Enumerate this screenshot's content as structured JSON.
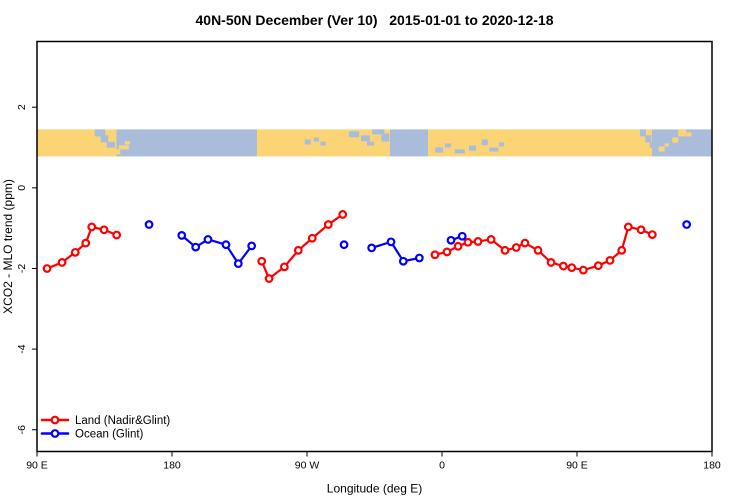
{
  "title": "40N-50N December (Ver 10)   2015-01-01 to 2020-12-18",
  "chart_data": {
    "type": "line",
    "title": "40N-50N December (Ver 10)   2015-01-01 to 2020-12-18",
    "xlabel": "Longitude (deg E)",
    "ylabel": "XCO2 - MLO trend (ppm)",
    "x_axis": {
      "min": 90,
      "max": 540,
      "ticks": [
        {
          "value": 90,
          "label": "90 E"
        },
        {
          "value": 180,
          "label": "180"
        },
        {
          "value": 270,
          "label": "90 W"
        },
        {
          "value": 360,
          "label": "0"
        },
        {
          "value": 450,
          "label": "90 E"
        },
        {
          "value": 540,
          "label": "180"
        }
      ]
    },
    "y_axis": {
      "min": -6.54,
      "max": 3.63,
      "ticks": [
        {
          "value": 2,
          "label": "2"
        },
        {
          "value": 0,
          "label": "0"
        },
        {
          "value": -2,
          "label": "-2"
        },
        {
          "value": -4,
          "label": "-4"
        },
        {
          "value": -6,
          "label": "-6"
        }
      ]
    },
    "grid": false,
    "legend_position": "bottom-left",
    "series": [
      {
        "name": "Land (Nadir&Glint)",
        "color": "#ff0000",
        "marker": "open-circle",
        "segments": [
          [
            [
              96.7,
              -2.0
            ],
            [
              106.7,
              -1.85
            ],
            [
              115.5,
              -1.6
            ],
            [
              122.5,
              -1.37
            ],
            [
              126.5,
              -0.97
            ],
            [
              134.7,
              -1.04
            ],
            [
              143.1,
              -1.17
            ]
          ],
          [
            [
              239.8,
              -1.82
            ],
            [
              244.7,
              -2.25
            ],
            [
              254.9,
              -1.96
            ],
            [
              264.2,
              -1.55
            ],
            [
              273.5,
              -1.25
            ],
            [
              284.2,
              -0.91
            ],
            [
              293.8,
              -0.66
            ]
          ],
          [
            [
              355.3,
              -1.66
            ],
            [
              363.3,
              -1.59
            ],
            [
              370.7,
              -1.45
            ],
            [
              377.3,
              -1.35
            ],
            [
              384.0,
              -1.33
            ],
            [
              392.7,
              -1.28
            ],
            [
              402.0,
              -1.55
            ],
            [
              409.5,
              -1.48
            ],
            [
              415.3,
              -1.37
            ],
            [
              424.0,
              -1.55
            ],
            [
              432.7,
              -1.85
            ],
            [
              440.9,
              -1.94
            ],
            [
              446.5,
              -1.98
            ],
            [
              454.2,
              -2.04
            ],
            [
              464.2,
              -1.93
            ],
            [
              472.0,
              -1.8
            ],
            [
              479.8,
              -1.55
            ],
            [
              484.2,
              -0.97
            ],
            [
              492.7,
              -1.04
            ],
            [
              500.2,
              -1.16
            ]
          ]
        ]
      },
      {
        "name": "Ocean (Glint)",
        "color": "#0000ff",
        "marker": "open-circle",
        "segments": [
          [
            [
              164.7,
              -0.91
            ]
          ],
          [
            [
              186.5,
              -1.18
            ],
            [
              195.8,
              -1.47
            ],
            [
              204.0,
              -1.28
            ],
            [
              216.0,
              -1.41
            ],
            [
              224.2,
              -1.88
            ],
            [
              233.1,
              -1.44
            ]
          ],
          [
            [
              294.7,
              -1.41
            ]
          ],
          [
            [
              313.1,
              -1.49
            ],
            [
              326.0,
              -1.34
            ],
            [
              334.2,
              -1.82
            ],
            [
              344.9,
              -1.74
            ]
          ],
          [
            [
              366.0,
              -1.3
            ],
            [
              373.5,
              -1.2
            ]
          ],
          [
            [
              523.1,
              -0.91
            ]
          ]
        ]
      }
    ],
    "map_band": {
      "description": "world coastline strip 40N-50N",
      "y_top_value": 1.45,
      "y_bottom_value": 0.78,
      "land_color": "#fbd476",
      "ocean_color": "#a9bddb",
      "base_segments": [
        {
          "from": 90,
          "to": 143,
          "type": "land"
        },
        {
          "from": 143,
          "to": 236.7,
          "type": "ocean"
        },
        {
          "from": 236.7,
          "to": 325.3,
          "type": "land"
        },
        {
          "from": 325.3,
          "to": 350.7,
          "type": "ocean"
        },
        {
          "from": 350.7,
          "to": 500,
          "type": "land"
        },
        {
          "from": 500,
          "to": 540,
          "type": "ocean"
        }
      ],
      "ocean_patches": [
        [
          128.5,
          7,
          0.0,
          0.26
        ],
        [
          132.5,
          5,
          0.22,
          0.26
        ],
        [
          136.5,
          5.5,
          0.46,
          0.22
        ],
        [
          268.5,
          4,
          0.37,
          0.19
        ],
        [
          274.5,
          3.5,
          0.3,
          0.15
        ],
        [
          279,
          3.5,
          0.45,
          0.15
        ],
        [
          298,
          6.7,
          0.07,
          0.22
        ],
        [
          306,
          6,
          0.22,
          0.22
        ],
        [
          313.5,
          8,
          0.0,
          0.19
        ],
        [
          310,
          4.7,
          0.45,
          0.15
        ],
        [
          319.5,
          5.3,
          0.15,
          0.3
        ],
        [
          355.5,
          5.3,
          0.67,
          0.19
        ],
        [
          362,
          4,
          0.52,
          0.15
        ],
        [
          368.5,
          6.7,
          0.74,
          0.15
        ],
        [
          378,
          4.7,
          0.6,
          0.19
        ],
        [
          386.5,
          4,
          0.37,
          0.22
        ],
        [
          391.5,
          6,
          0.67,
          0.15
        ],
        [
          398,
          3.3,
          0.48,
          0.15
        ],
        [
          492,
          4,
          0.0,
          0.26
        ],
        [
          495.5,
          4,
          0.22,
          0.26
        ],
        [
          498.5,
          3.5,
          0.46,
          0.22
        ]
      ],
      "land_patches": [
        [
          144.5,
          6.7,
          0.59,
          0.15
        ],
        [
          139.5,
          6,
          0.74,
          0.19
        ],
        [
          148.5,
          3.5,
          0.44,
          0.12
        ],
        [
          517.5,
          5.3,
          0.0,
          0.26
        ],
        [
          513.5,
          4,
          0.3,
          0.19
        ],
        [
          523,
          3.3,
          0.11,
          0.15
        ],
        [
          508.5,
          2.7,
          0.52,
          0.11
        ],
        [
          504.5,
          4,
          0.63,
          0.19
        ]
      ]
    }
  }
}
